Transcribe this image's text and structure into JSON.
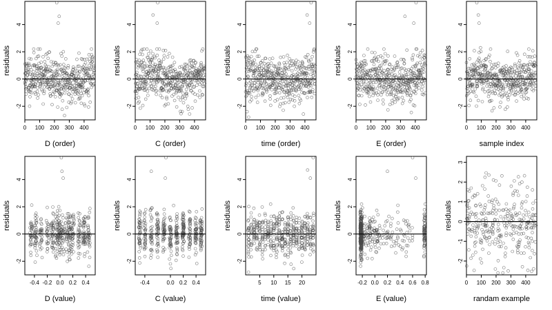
{
  "chart_data": [
    {
      "type": "scatter",
      "xlabel": "D (order)",
      "ylabel": "residuals",
      "xlim": [
        0,
        475
      ],
      "ylim": [
        -3,
        5.7
      ],
      "xticks": [
        0,
        100,
        200,
        300,
        400
      ],
      "yticks": [
        -2,
        0,
        2,
        4
      ],
      "ytick_labels": [
        "-2",
        "0",
        "2",
        "4"
      ],
      "gen": {
        "kind": "index",
        "n": 470,
        "seed": 11
      },
      "outliers": [
        [
          215,
          5.6
        ],
        [
          225,
          4.1
        ],
        [
          232,
          4.6
        ],
        [
          260,
          2.0
        ],
        [
          365,
          1.9
        ]
      ],
      "reference_line": 0
    },
    {
      "type": "scatter",
      "xlabel": "C (order)",
      "ylabel": "residuals",
      "xlim": [
        0,
        475
      ],
      "ylim": [
        -3,
        5.7
      ],
      "xticks": [
        0,
        100,
        200,
        300,
        400
      ],
      "yticks": [
        -2,
        0,
        2,
        4
      ],
      "ytick_labels": [
        "-2",
        "0",
        "2",
        "4"
      ],
      "gen": {
        "kind": "index",
        "n": 470,
        "seed": 23
      },
      "outliers": [
        [
          152,
          5.6
        ],
        [
          120,
          4.7
        ],
        [
          148,
          4.1
        ],
        [
          190,
          2.1
        ]
      ],
      "reference_line": 0
    },
    {
      "type": "scatter",
      "xlabel": "time (order)",
      "ylabel": "residuals",
      "xlim": [
        0,
        475
      ],
      "ylim": [
        -3,
        5.7
      ],
      "xticks": [
        0,
        100,
        200,
        300,
        400
      ],
      "yticks": [
        -2,
        0,
        2,
        4
      ],
      "ytick_labels": [
        "-2",
        "0",
        "2",
        "4"
      ],
      "gen": {
        "kind": "index",
        "n": 470,
        "seed": 37
      },
      "outliers": [
        [
          442,
          5.6
        ],
        [
          415,
          4.7
        ],
        [
          432,
          4.1
        ],
        [
          20,
          -2.8
        ],
        [
          10,
          -2.4
        ]
      ],
      "reference_line": 0
    },
    {
      "type": "scatter",
      "xlabel": "E (order)",
      "ylabel": "residuals",
      "xlim": [
        0,
        475
      ],
      "ylim": [
        -3,
        5.7
      ],
      "xticks": [
        0,
        100,
        200,
        300,
        400
      ],
      "yticks": [
        -2,
        0,
        2,
        4
      ],
      "ytick_labels": [
        "-2",
        "0",
        "2",
        "4"
      ],
      "gen": {
        "kind": "index",
        "n": 470,
        "seed": 41
      },
      "outliers": [
        [
          405,
          5.6
        ],
        [
          330,
          4.6
        ],
        [
          390,
          4.1
        ],
        [
          405,
          2.2
        ]
      ],
      "reference_line": 0
    },
    {
      "type": "scatter",
      "xlabel": "sample index",
      "ylabel": "residuals",
      "xlim": [
        0,
        475
      ],
      "ylim": [
        -3,
        5.7
      ],
      "xticks": [
        0,
        100,
        200,
        300,
        400
      ],
      "yticks": [
        -2,
        0,
        2,
        4
      ],
      "ytick_labels": [
        "-2",
        "0",
        "2",
        "4"
      ],
      "gen": {
        "kind": "index",
        "n": 470,
        "seed": 53
      },
      "outliers": [
        [
          70,
          5.6
        ],
        [
          80,
          4.7
        ],
        [
          85,
          4.1
        ],
        [
          95,
          2.3
        ]
      ],
      "reference_line": 0
    },
    {
      "type": "scatter",
      "xlabel": "D (value)",
      "ylabel": "residuals",
      "xlim": [
        -0.55,
        0.55
      ],
      "ylim": [
        -3,
        5.7
      ],
      "xticks": [
        -0.4,
        -0.2,
        0.0,
        0.2,
        0.4
      ],
      "xtick_labels": [
        "-0.4",
        "-0.2",
        "0.0",
        "0.2",
        "0.4"
      ],
      "yticks": [
        -2,
        0,
        2,
        4
      ],
      "ytick_labels": [
        "-2",
        "0",
        "2",
        "4"
      ],
      "gen": {
        "kind": "discrete",
        "n": 470,
        "seed": 61,
        "levels": [
          -0.45,
          -0.38,
          -0.3,
          -0.2,
          -0.12,
          -0.05,
          0.0,
          0.05,
          0.1,
          0.15,
          0.2,
          0.3,
          0.38,
          0.45
        ],
        "jitter": 0.02
      },
      "outliers": [
        [
          0.02,
          5.6
        ],
        [
          0.05,
          4.1
        ],
        [
          0.03,
          4.6
        ],
        [
          -0.02,
          2.0
        ]
      ],
      "reference_line": 0
    },
    {
      "type": "scatter",
      "xlabel": "C (value)",
      "ylabel": "residuals",
      "xlim": [
        -0.55,
        0.55
      ],
      "ylim": [
        -3,
        5.7
      ],
      "xticks": [
        -0.4,
        0.0,
        0.2,
        0.4
      ],
      "xtick_labels": [
        "-0.4",
        "0.0",
        "0.2",
        "0.4"
      ],
      "yticks": [
        -2,
        0,
        2,
        4
      ],
      "ytick_labels": [
        "-2",
        "0",
        "2",
        "4"
      ],
      "gen": {
        "kind": "discrete",
        "n": 470,
        "seed": 71,
        "levels": [
          -0.48,
          -0.4,
          -0.3,
          -0.2,
          -0.1,
          0.0,
          0.1,
          0.2,
          0.3,
          0.4,
          0.48
        ],
        "jitter": 0.015
      },
      "outliers": [
        [
          -0.07,
          5.6
        ],
        [
          -0.3,
          4.6
        ],
        [
          -0.08,
          4.1
        ],
        [
          0.05,
          2.1
        ]
      ],
      "reference_line": 0
    },
    {
      "type": "scatter",
      "xlabel": "time (value)",
      "ylabel": "residuals",
      "xlim": [
        0,
        25
      ],
      "ylim": [
        -3,
        5.7
      ],
      "xticks": [
        5,
        10,
        15,
        20
      ],
      "yticks": [
        -2,
        0,
        2,
        4
      ],
      "ytick_labels": [
        "-2",
        "0",
        "2",
        "4"
      ],
      "gen": {
        "kind": "discrete",
        "n": 470,
        "seed": 83,
        "levels": [
          1,
          2,
          3,
          4,
          5,
          6,
          7,
          8,
          9,
          10,
          11,
          12,
          13,
          14,
          15,
          16,
          17,
          18,
          19,
          20,
          21,
          22,
          23,
          24
        ],
        "jitter": 0.15
      },
      "outliers": [
        [
          24,
          5.6
        ],
        [
          22,
          4.7
        ],
        [
          23,
          4.1
        ],
        [
          1,
          -2.8
        ]
      ],
      "reference_line": 0
    },
    {
      "type": "scatter",
      "xlabel": "E (value)",
      "ylabel": "residuals",
      "xlim": [
        -0.3,
        0.82
      ],
      "ylim": [
        -3,
        5.7
      ],
      "xticks": [
        -0.2,
        0.0,
        0.2,
        0.4,
        0.6,
        0.8
      ],
      "xtick_labels": [
        "-0.2",
        "0.0",
        "0.2",
        "0.4",
        "0.6",
        "0.8"
      ],
      "yticks": [
        -2,
        0,
        2,
        4
      ],
      "ytick_labels": [
        "-2",
        "0",
        "2",
        "4"
      ],
      "gen": {
        "kind": "skewed",
        "n": 470,
        "seed": 97
      },
      "outliers": [
        [
          0.6,
          5.6
        ],
        [
          0.2,
          4.6
        ],
        [
          0.65,
          4.1
        ],
        [
          0.8,
          2.2
        ]
      ],
      "reference_line": 0
    },
    {
      "type": "scatter",
      "xlabel": "randam example",
      "ylabel": "residuals",
      "xlim": [
        0,
        475
      ],
      "ylim": [
        -2.7,
        3.3
      ],
      "xticks": [
        0,
        100,
        200,
        300,
        400
      ],
      "yticks": [
        -2,
        -1,
        0,
        1,
        2,
        3
      ],
      "ytick_labels": [
        "-2",
        "-1",
        "0",
        "1",
        "2",
        "3"
      ],
      "gen": {
        "kind": "uniform",
        "n": 300,
        "seed": 107
      },
      "outliers": [],
      "reference_line": 0
    }
  ]
}
